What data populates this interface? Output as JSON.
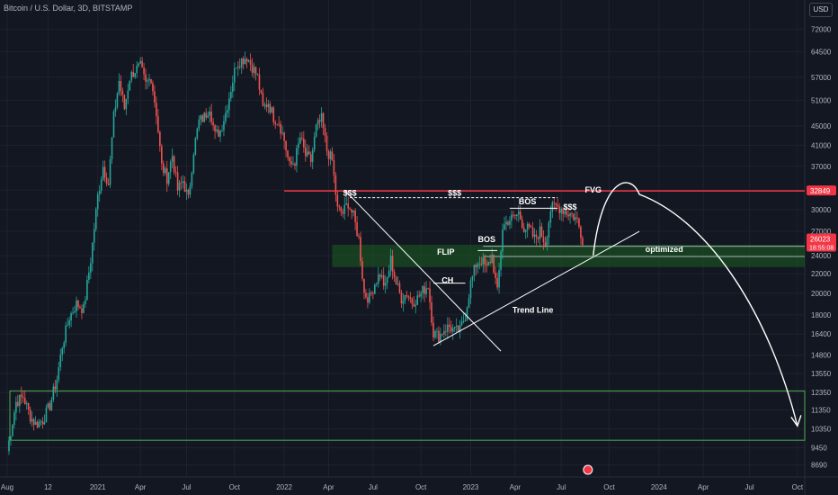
{
  "header": {
    "symbol_line": "Bitcoin / U.S. Dollar, 3D, BITSTAMP",
    "currency": "USD"
  },
  "colors": {
    "bg": "#131722",
    "up": "#26a69a",
    "down": "#ef5350",
    "grid": "#1e222d",
    "axis_text": "#b2b5be"
  },
  "chart_data": {
    "type": "candlestick",
    "scale": "log",
    "ylim": [
      8200,
      76000
    ],
    "price_ticks": [
      "72000",
      "64500",
      "57000",
      "51000",
      "45000",
      "41000",
      "37000",
      "33000",
      "30000",
      "27000",
      "24000",
      "22000",
      "20000",
      "18000",
      "16400",
      "14800",
      "13550",
      "12350",
      "11350",
      "10350",
      "9450",
      "8690"
    ],
    "time_ticks": [
      {
        "label": "Aug",
        "t": 0
      },
      {
        "label": "12",
        "t": 23
      },
      {
        "label": "2021",
        "t": 51
      },
      {
        "label": "Apr",
        "t": 75
      },
      {
        "label": "Jul",
        "t": 101
      },
      {
        "label": "Oct",
        "t": 128
      },
      {
        "label": "2022",
        "t": 156
      },
      {
        "label": "Apr",
        "t": 181
      },
      {
        "label": "Jul",
        "t": 206
      },
      {
        "label": "Oct",
        "t": 233
      },
      {
        "label": "2023",
        "t": 261
      },
      {
        "label": "Apr",
        "t": 286
      },
      {
        "label": "Jul",
        "t": 312
      },
      {
        "label": "Oct",
        "t": 339
      },
      {
        "label": "2024",
        "t": 367
      },
      {
        "label": "Apr",
        "t": 392
      },
      {
        "label": "Jul",
        "t": 418
      },
      {
        "label": "Oct",
        "t": 445
      }
    ],
    "price_path": [
      [
        0,
        9300
      ],
      [
        5,
        11800
      ],
      [
        9,
        12100
      ],
      [
        13,
        11000
      ],
      [
        16,
        10600
      ],
      [
        20,
        10800
      ],
      [
        24,
        11600
      ],
      [
        28,
        13200
      ],
      [
        31,
        15500
      ],
      [
        35,
        17800
      ],
      [
        39,
        19000
      ],
      [
        43,
        18500
      ],
      [
        47,
        23500
      ],
      [
        51,
        32000
      ],
      [
        54,
        37000
      ],
      [
        57,
        34000
      ],
      [
        60,
        47000
      ],
      [
        63,
        56000
      ],
      [
        66,
        49000
      ],
      [
        69,
        57000
      ],
      [
        72,
        59000
      ],
      [
        75,
        60000
      ],
      [
        78,
        55000
      ],
      [
        81,
        57000
      ],
      [
        84,
        48000
      ],
      [
        87,
        37000
      ],
      [
        90,
        35000
      ],
      [
        93,
        39000
      ],
      [
        96,
        33000
      ],
      [
        99,
        34500
      ],
      [
        102,
        31500
      ],
      [
        105,
        40000
      ],
      [
        108,
        46000
      ],
      [
        111,
        47000
      ],
      [
        114,
        49500
      ],
      [
        117,
        43000
      ],
      [
        120,
        44000
      ],
      [
        123,
        48000
      ],
      [
        126,
        54000
      ],
      [
        129,
        61000
      ],
      [
        132,
        62000
      ],
      [
        135,
        63000
      ],
      [
        138,
        60000
      ],
      [
        141,
        57000
      ],
      [
        144,
        49000
      ],
      [
        147,
        50500
      ],
      [
        150,
        47000
      ],
      [
        153,
        46000
      ],
      [
        156,
        42000
      ],
      [
        159,
        37000
      ],
      [
        162,
        38000
      ],
      [
        165,
        42500
      ],
      [
        168,
        39000
      ],
      [
        171,
        38000
      ],
      [
        174,
        44500
      ],
      [
        177,
        46500
      ],
      [
        180,
        40000
      ],
      [
        183,
        38000
      ],
      [
        186,
        30000
      ],
      [
        189,
        29500
      ],
      [
        192,
        31000
      ],
      [
        195,
        29000
      ],
      [
        198,
        26000
      ],
      [
        201,
        20000
      ],
      [
        204,
        19500
      ],
      [
        207,
        21000
      ],
      [
        210,
        22000
      ],
      [
        213,
        20500
      ],
      [
        216,
        23500
      ],
      [
        219,
        21000
      ],
      [
        222,
        19500
      ],
      [
        225,
        20000
      ],
      [
        228,
        19200
      ],
      [
        231,
        19500
      ],
      [
        234,
        20200
      ],
      [
        237,
        20800
      ],
      [
        240,
        16500
      ],
      [
        243,
        16200
      ],
      [
        246,
        16800
      ],
      [
        249,
        17000
      ],
      [
        252,
        16600
      ],
      [
        255,
        16700
      ],
      [
        258,
        18000
      ],
      [
        261,
        21000
      ],
      [
        264,
        23000
      ],
      [
        267,
        23500
      ],
      [
        270,
        22500
      ],
      [
        273,
        24000
      ],
      [
        276,
        20000
      ],
      [
        279,
        27500
      ],
      [
        282,
        28500
      ],
      [
        285,
        28800
      ],
      [
        288,
        29500
      ],
      [
        291,
        27500
      ],
      [
        294,
        27200
      ],
      [
        297,
        26000
      ],
      [
        300,
        27000
      ],
      [
        303,
        25500
      ],
      [
        306,
        30000
      ],
      [
        309,
        30500
      ],
      [
        312,
        30200
      ],
      [
        315,
        29600
      ],
      [
        318,
        29300
      ],
      [
        321,
        28500
      ],
      [
        324,
        26000
      ]
    ],
    "levels": [
      {
        "name": "resistance-32849",
        "price": 32849,
        "color": "#f23645",
        "t_start": 156
      },
      {
        "name": "fvg-upper",
        "price": 12450,
        "color": "#4caf50",
        "t_start": 0
      },
      {
        "name": "fvg-lower",
        "price": 9800,
        "color": "#4caf50",
        "t_start": 0
      }
    ],
    "zone": {
      "price_top": 25300,
      "price_bottom": 22700,
      "t_start": 183,
      "color": "#1b5e20"
    },
    "zone_mid_lines": [
      {
        "price": 25100,
        "t_start": 268
      },
      {
        "price": 23900,
        "t_start": 268
      }
    ],
    "trend_lines": [
      {
        "name": "trend-line",
        "p1": [
          240,
          15500
        ],
        "p2": [
          356,
          27000
        ]
      },
      {
        "name": "down-line",
        "p1": [
          190,
          33000
        ],
        "p2": [
          278,
          15100
        ]
      }
    ],
    "structure_lines": [
      {
        "name": "sss-line-1",
        "p1": [
          193,
          31800
        ],
        "p2": [
          310,
          31800
        ],
        "dashed": true
      },
      {
        "name": "bos-line-2",
        "p1": [
          283,
          30200
        ],
        "p2": [
          310,
          30200
        ],
        "dashed": false
      },
      {
        "name": "bos-line-1",
        "p1": [
          265,
          24600
        ],
        "p2": [
          276,
          24600
        ],
        "dashed": false
      },
      {
        "name": "ch-line",
        "p1": [
          240,
          21000
        ],
        "p2": [
          258,
          21000
        ],
        "dashed": false
      }
    ],
    "projection": {
      "start": [
        330,
        24000
      ],
      "peak": [
        356,
        32300
      ],
      "end": [
        445,
        10500
      ]
    },
    "annotations": [
      {
        "name": "sss-left",
        "text": "$$$",
        "t": 193,
        "price": 32100
      },
      {
        "name": "sss-mid",
        "text": "$$$",
        "t": 252,
        "price": 32100
      },
      {
        "name": "bos-top",
        "text": "BOS",
        "t": 293,
        "price": 30800
      },
      {
        "name": "sss-right",
        "text": "$$$",
        "t": 317,
        "price": 30000
      },
      {
        "name": "fvg-label",
        "text": "FVG",
        "t": 330,
        "price": 32600
      },
      {
        "name": "flip-label",
        "text": "FLIP",
        "t": 247,
        "price": 24100
      },
      {
        "name": "bos-left",
        "text": "BOS",
        "t": 270,
        "price": 25600
      },
      {
        "name": "ch-label",
        "text": "CH",
        "t": 248,
        "price": 21000
      },
      {
        "name": "optimized-label",
        "text": "optimized",
        "t": 370,
        "price": 24400
      },
      {
        "name": "trend-line-label",
        "text": "Trend Line",
        "t": 296,
        "price": 18200
      }
    ],
    "price_labels": [
      {
        "name": "label-32849",
        "text": "32849",
        "price": 32849,
        "color": "#f23645"
      },
      {
        "name": "label-current",
        "text": "26023",
        "sub": "18:55:08",
        "price": 26023,
        "color": "#f23645"
      }
    ]
  }
}
